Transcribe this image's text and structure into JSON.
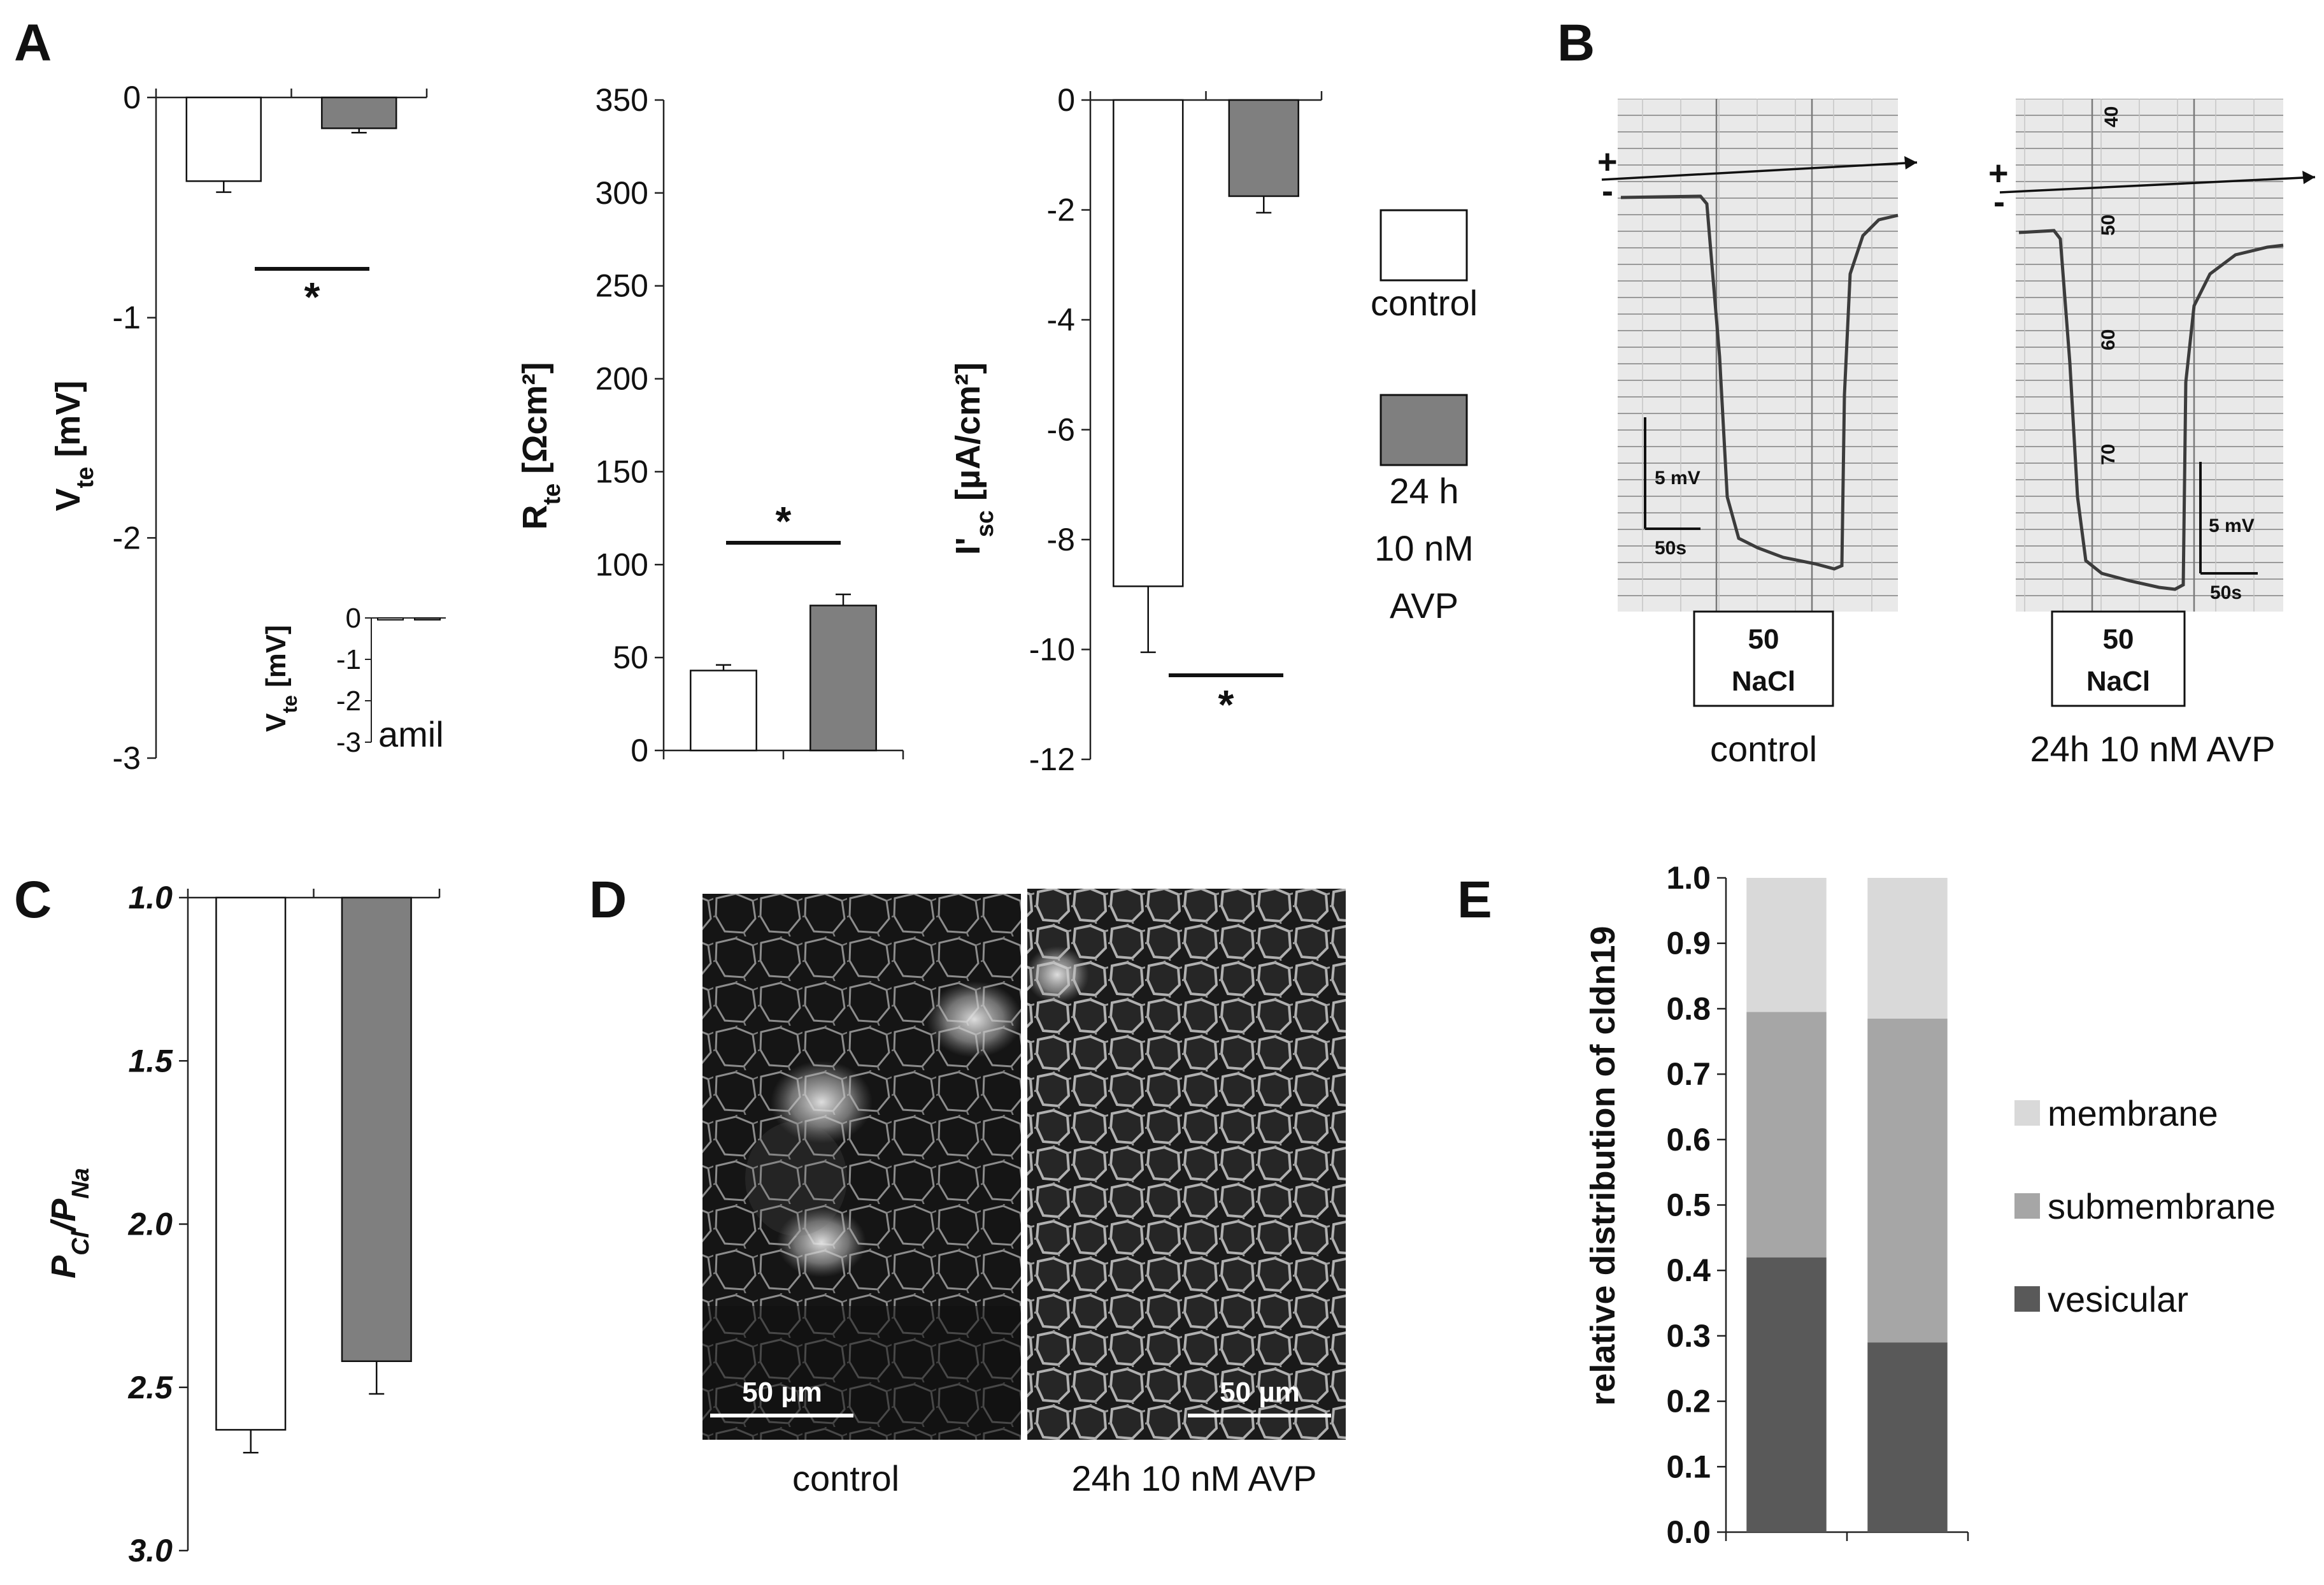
{
  "panel_labels": {
    "A": "A",
    "B": "B",
    "C": "C",
    "D": "D",
    "E": "E"
  },
  "colors": {
    "control": "#ffffff",
    "avp": "#7f7f7f",
    "membrane": "#d9d9d9",
    "submembrane": "#a6a6a6",
    "vesicular": "#595959"
  },
  "legend_A": {
    "control": "control",
    "avp_line1": "24 h",
    "avp_line2": "10 nM",
    "avp_line3": "AVP"
  },
  "chart_data": [
    {
      "id": "A1",
      "type": "bar",
      "ylabel_main": "V",
      "ylabel_sub": "te",
      "ylabel_unit": " [mV]",
      "ylim": [
        -3,
        0
      ],
      "yticks": [
        0,
        -1,
        -2,
        -3
      ],
      "categories": [
        "control",
        "24 h 10 nM AVP"
      ],
      "values": [
        -0.38,
        -0.14
      ],
      "errors": [
        0.05,
        0.02
      ],
      "significance": "*",
      "inset": {
        "ylabel_main": "V",
        "ylabel_sub": "te",
        "ylabel_unit": " [mV]",
        "yticks": [
          0,
          -1,
          -2,
          -3
        ],
        "ylim": [
          -3,
          0
        ],
        "values": [
          -0.03,
          -0.04
        ],
        "label": "amil"
      }
    },
    {
      "id": "A2",
      "type": "bar",
      "ylabel_main": "R",
      "ylabel_sub": "te",
      "ylabel_unit": " [Ωcm²]",
      "ylim": [
        0,
        350
      ],
      "yticks": [
        0,
        50,
        100,
        150,
        200,
        250,
        300,
        350
      ],
      "categories": [
        "control",
        "24 h 10 nM AVP"
      ],
      "values": [
        43,
        78
      ],
      "errors": [
        3,
        6
      ],
      "significance": "*"
    },
    {
      "id": "A3",
      "type": "bar",
      "ylabel_main": "I'",
      "ylabel_sub": "sc",
      "ylabel_unit": " [µA/cm²]",
      "ylim": [
        -12,
        0
      ],
      "yticks": [
        0,
        -2,
        -4,
        -6,
        -8,
        -10,
        -12
      ],
      "categories": [
        "control",
        "24 h 10 nM AVP"
      ],
      "values": [
        -8.85,
        -1.75
      ],
      "errors": [
        1.2,
        0.3
      ],
      "significance": "*"
    },
    {
      "id": "C",
      "type": "bar",
      "ylabel_main": "P",
      "ylabel_sub1": "Cl",
      "ylabel_slash": "/P",
      "ylabel_sub2": "Na",
      "ylim": [
        1.0,
        3.0
      ],
      "inverted": true,
      "ytick_labels": [
        "1.0",
        "1.5",
        "2.0",
        "2.5",
        "3.0"
      ],
      "categories": [
        "control",
        "24 h 10 nM AVP"
      ],
      "values": [
        2.63,
        2.42
      ],
      "errors": [
        0.07,
        0.1
      ]
    },
    {
      "id": "E",
      "type": "bar",
      "stacked": true,
      "ylabel": "relative distribution of cldn19",
      "ylim": [
        0,
        1
      ],
      "ytick_labels": [
        "0.0",
        "0.1",
        "0.2",
        "0.3",
        "0.4",
        "0.5",
        "0.6",
        "0.7",
        "0.8",
        "0.9",
        "1.0"
      ],
      "categories": [
        "control",
        "24h 10 nM AVP"
      ],
      "series": [
        {
          "name": "vesicular",
          "values": [
            0.42,
            0.29
          ]
        },
        {
          "name": "submembrane",
          "values": [
            0.375,
            0.495
          ]
        },
        {
          "name": "membrane",
          "values": [
            0.205,
            0.215
          ]
        }
      ]
    }
  ],
  "panel_B": {
    "plus": "+",
    "minus": "-",
    "control": {
      "scale_v": "5 mV",
      "scale_t": "50s",
      "box_line1": "50",
      "box_line2": "NaCl",
      "caption": "control"
    },
    "avp": {
      "scale_v": "5 mV",
      "scale_t": "50s",
      "box_line1": "50",
      "box_line2": "NaCl",
      "caption": "24h 10 nM AVP",
      "paper_marks": [
        "40",
        "50",
        "60",
        "70"
      ]
    }
  },
  "panel_D": {
    "scale_bar": "50 µm",
    "caption_left": "control",
    "caption_right": "24h 10 nM AVP"
  }
}
